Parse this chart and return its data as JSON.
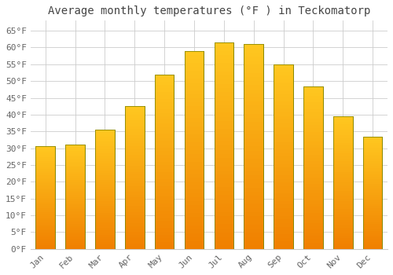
{
  "title": "Average monthly temperatures (°F ) in Teckomatorp",
  "months": [
    "Jan",
    "Feb",
    "Mar",
    "Apr",
    "May",
    "Jun",
    "Jul",
    "Aug",
    "Sep",
    "Oct",
    "Nov",
    "Dec"
  ],
  "values": [
    30.5,
    31.0,
    35.5,
    42.5,
    52.0,
    59.0,
    61.5,
    61.0,
    55.0,
    48.5,
    39.5,
    33.5
  ],
  "bar_color_top": "#FFC020",
  "bar_color_bottom": "#F08000",
  "bar_edge_color": "#888800",
  "background_color": "#FFFFFF",
  "grid_color": "#CCCCCC",
  "text_color": "#666666",
  "ylim": [
    0,
    68
  ],
  "yticks": [
    0,
    5,
    10,
    15,
    20,
    25,
    30,
    35,
    40,
    45,
    50,
    55,
    60,
    65
  ],
  "title_fontsize": 10,
  "tick_fontsize": 8,
  "font_family": "monospace"
}
